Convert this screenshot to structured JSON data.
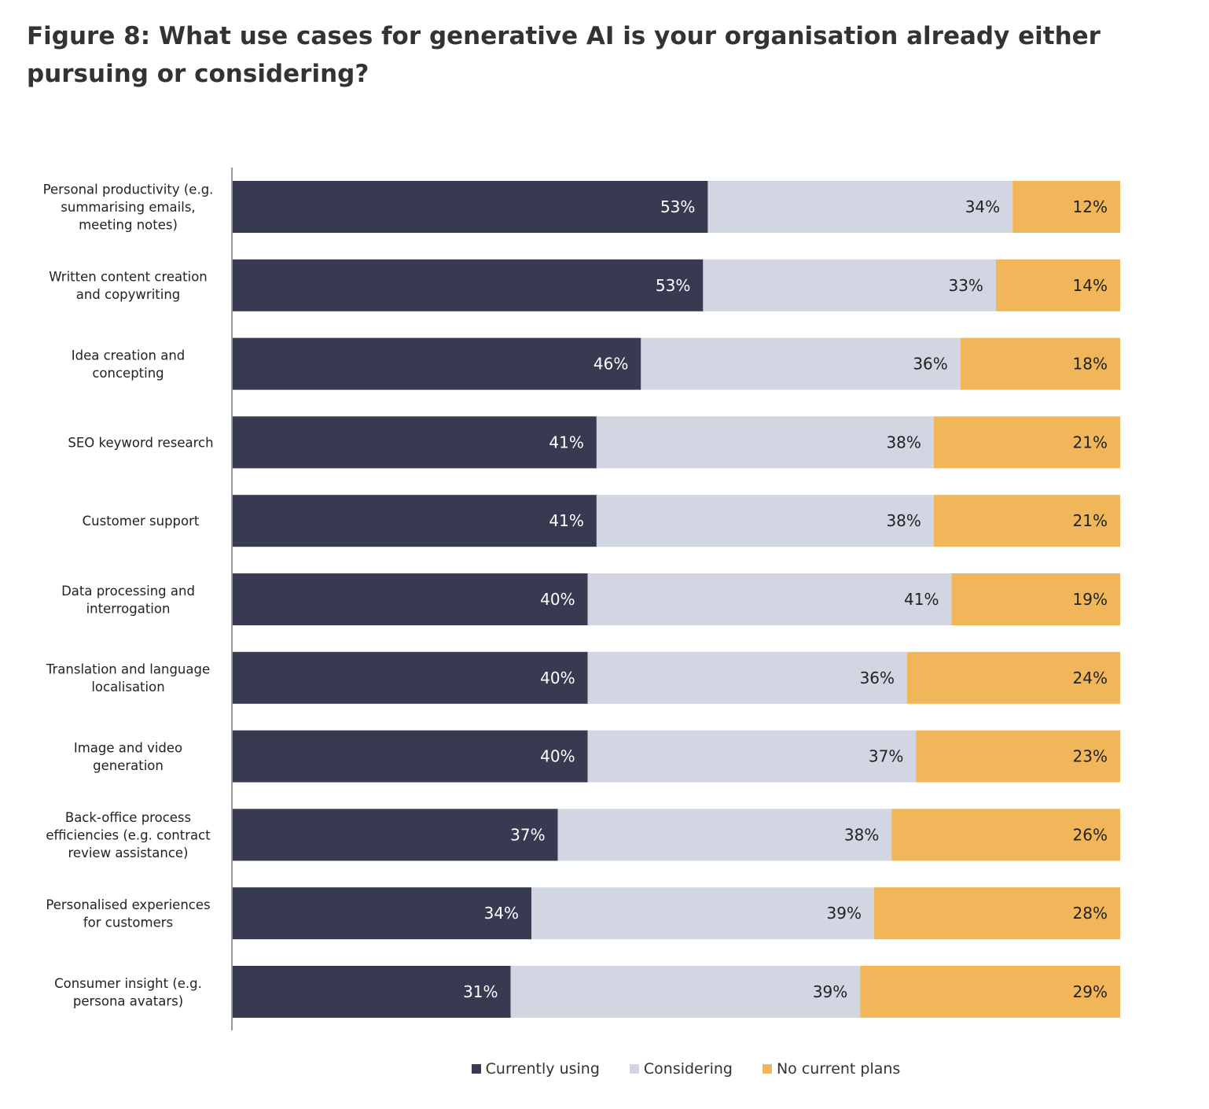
{
  "chart_data": {
    "type": "bar",
    "orientation": "horizontal",
    "stacked": true,
    "title": "Figure 8: What use cases for generative AI is your organisation already either pursuing or considering?",
    "categories": [
      "Personal productivity (e.g. summarising emails, meeting notes)",
      "Written content creation and copywriting",
      "Idea creation and concepting",
      "SEO keyword research",
      "Customer support",
      "Data processing and interrogation",
      "Translation and language localisation",
      "Image and video generation",
      "Back-office process efficiencies (e.g. contract review assistance)",
      "Personalised experiences for customers",
      "Consumer insight (e.g. persona avatars)"
    ],
    "category_lines": [
      [
        "Personal productivity (e.g.",
        "summarising emails,",
        "meeting notes)"
      ],
      [
        "Written content creation",
        "and copywriting"
      ],
      [
        "Idea creation and",
        "concepting"
      ],
      [
        "SEO keyword research"
      ],
      [
        "Customer support"
      ],
      [
        "Data processing and",
        "interrogation"
      ],
      [
        "Translation and language",
        "localisation"
      ],
      [
        "Image and video",
        "generation"
      ],
      [
        "Back-office process",
        "efficiencies (e.g. contract",
        "review assistance)"
      ],
      [
        "Personalised experiences",
        "for customers"
      ],
      [
        "Consumer insight (e.g.",
        "persona avatars)"
      ]
    ],
    "series": [
      {
        "name": "Currently using",
        "color": "#383a51",
        "label_color": "#ffffff",
        "values": [
          53,
          53,
          46,
          41,
          41,
          40,
          40,
          40,
          37,
          34,
          31
        ],
        "labels": [
          "53%",
          "53%",
          "46%",
          "41%",
          "41%",
          "40%",
          "40%",
          "40%",
          "37%",
          "34%",
          "31%"
        ]
      },
      {
        "name": "Considering",
        "color": "#d2d5e2",
        "label_color": "#222222",
        "values": [
          34,
          33,
          36,
          38,
          38,
          41,
          36,
          37,
          38,
          39,
          39
        ],
        "labels": [
          "34%",
          "33%",
          "36%",
          "38%",
          "38%",
          "41%",
          "36%",
          "37%",
          "38%",
          "39%",
          "39%"
        ]
      },
      {
        "name": "No current plans",
        "color": "#f1b65a",
        "label_color": "#222222",
        "values": [
          12,
          14,
          18,
          21,
          21,
          19,
          24,
          23,
          26,
          28,
          29
        ],
        "labels": [
          "12%",
          "14%",
          "18%",
          "21%",
          "21%",
          "19%",
          "24%",
          "23%",
          "26%",
          "28%",
          "29%"
        ]
      }
    ],
    "legend_position": "bottom-center",
    "grid": false
  }
}
